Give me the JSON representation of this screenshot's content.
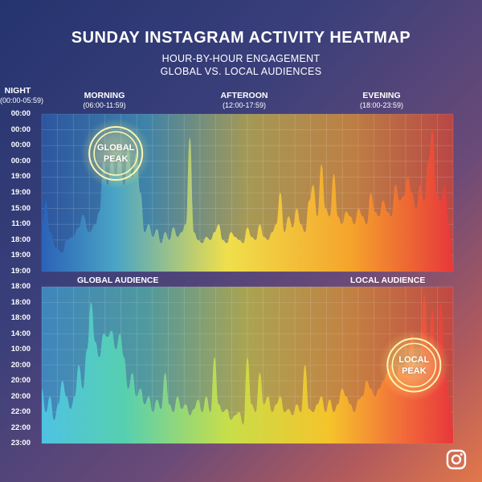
{
  "title": "SUNDAY INSTAGRAM ACTIVITY HEATMAP",
  "subtitle_line1": "HOUR-BY-HOUR ENGAGEMENT",
  "subtitle_line2": "GLOBAL VS. LOCAL AUDIENCES",
  "periods": [
    {
      "name": "NIGHT",
      "range": "(00:00-05:59)"
    },
    {
      "name": "MORNING",
      "range": "(06:00-11:59)"
    },
    {
      "name": "AFTEROON",
      "range": "(12:00-17:59)"
    },
    {
      "name": "EVENING",
      "range": "(18:00-23:59)"
    }
  ],
  "logo_icon": "instagram-icon",
  "chart_data": [
    {
      "type": "area",
      "panel": "top",
      "y_tick_labels": [
        "00:00",
        "00:00",
        "00:00",
        "00:00",
        "19:00",
        "19:00",
        "15:00",
        "11:00",
        "18:00",
        "19:00",
        "19:00"
      ],
      "grid": true,
      "gradient_colors": [
        "#2b62b8",
        "#4aa6c6",
        "#f2e24a",
        "#f7a52a",
        "#e8373b"
      ],
      "annotation": {
        "lines": [
          "GLOBAL",
          "PEAK"
        ],
        "x": 0.18,
        "y": 0.75
      },
      "x": [
        0,
        0.01,
        0.02,
        0.035,
        0.05,
        0.06,
        0.075,
        0.09,
        0.1,
        0.115,
        0.13,
        0.14,
        0.15,
        0.16,
        0.17,
        0.18,
        0.19,
        0.2,
        0.21,
        0.22,
        0.23,
        0.24,
        0.25,
        0.26,
        0.27,
        0.28,
        0.29,
        0.3,
        0.31,
        0.32,
        0.33,
        0.34,
        0.35,
        0.36,
        0.37,
        0.38,
        0.39,
        0.4,
        0.41,
        0.42,
        0.43,
        0.44,
        0.45,
        0.46,
        0.47,
        0.48,
        0.49,
        0.5,
        0.51,
        0.52,
        0.53,
        0.54,
        0.55,
        0.56,
        0.57,
        0.58,
        0.59,
        0.6,
        0.61,
        0.62,
        0.63,
        0.64,
        0.65,
        0.66,
        0.67,
        0.68,
        0.69,
        0.7,
        0.71,
        0.72,
        0.73,
        0.74,
        0.75,
        0.76,
        0.77,
        0.78,
        0.79,
        0.8,
        0.81,
        0.82,
        0.83,
        0.84,
        0.85,
        0.86,
        0.87,
        0.88,
        0.89,
        0.9,
        0.91,
        0.92,
        0.93,
        0.94,
        0.95,
        0.96,
        0.97,
        0.98,
        0.99,
        1
      ],
      "values": [
        0.3,
        0.45,
        0.25,
        0.15,
        0.12,
        0.2,
        0.22,
        0.28,
        0.36,
        0.25,
        0.3,
        0.38,
        0.7,
        0.55,
        0.72,
        0.62,
        0.75,
        0.55,
        0.8,
        0.6,
        0.75,
        0.5,
        0.25,
        0.3,
        0.22,
        0.27,
        0.18,
        0.25,
        0.2,
        0.28,
        0.22,
        0.25,
        0.3,
        0.85,
        0.25,
        0.2,
        0.18,
        0.22,
        0.2,
        0.25,
        0.3,
        0.2,
        0.18,
        0.25,
        0.22,
        0.2,
        0.18,
        0.28,
        0.22,
        0.2,
        0.3,
        0.22,
        0.2,
        0.25,
        0.3,
        0.5,
        0.25,
        0.35,
        0.28,
        0.4,
        0.3,
        0.25,
        0.45,
        0.55,
        0.35,
        0.68,
        0.4,
        0.35,
        0.62,
        0.35,
        0.3,
        0.38,
        0.35,
        0.3,
        0.4,
        0.35,
        0.3,
        0.5,
        0.38,
        0.35,
        0.45,
        0.38,
        0.35,
        0.55,
        0.45,
        0.48,
        0.6,
        0.5,
        0.4,
        0.55,
        0.45,
        0.7,
        0.9,
        0.5,
        0.45,
        0.55,
        0.3,
        0.05
      ]
    },
    {
      "type": "area",
      "panel": "bottom",
      "y_tick_labels": [
        "18:00",
        "18:00",
        "18:00",
        "14:00",
        "10:00",
        "20:00",
        "20:00",
        "20:00",
        "22:00",
        "22:00",
        "23:00"
      ],
      "grid": true,
      "gradient_colors": [
        "#4fc4e4",
        "#56d1b0",
        "#c8e04a",
        "#f7c52a",
        "#f36a3a",
        "#e8373b"
      ],
      "section_labels": {
        "left": "GLOBAL AUDIENCE",
        "right": "LOCAL AUDIENCE"
      },
      "annotation": {
        "lines": [
          "LOCAL",
          "PEAK"
        ],
        "x": 0.905,
        "y": 0.5
      },
      "x": [
        0,
        0.01,
        0.02,
        0.03,
        0.04,
        0.05,
        0.06,
        0.07,
        0.08,
        0.09,
        0.1,
        0.11,
        0.12,
        0.13,
        0.14,
        0.15,
        0.16,
        0.17,
        0.18,
        0.19,
        0.2,
        0.21,
        0.22,
        0.23,
        0.24,
        0.25,
        0.26,
        0.27,
        0.28,
        0.29,
        0.3,
        0.31,
        0.32,
        0.33,
        0.34,
        0.35,
        0.36,
        0.37,
        0.38,
        0.39,
        0.4,
        0.41,
        0.42,
        0.43,
        0.44,
        0.45,
        0.46,
        0.47,
        0.48,
        0.49,
        0.5,
        0.51,
        0.52,
        0.53,
        0.54,
        0.55,
        0.56,
        0.57,
        0.58,
        0.59,
        0.6,
        0.61,
        0.62,
        0.63,
        0.64,
        0.65,
        0.66,
        0.67,
        0.68,
        0.69,
        0.7,
        0.71,
        0.72,
        0.73,
        0.74,
        0.75,
        0.76,
        0.77,
        0.78,
        0.79,
        0.8,
        0.81,
        0.82,
        0.83,
        0.84,
        0.85,
        0.86,
        0.87,
        0.88,
        0.89,
        0.9,
        0.91,
        0.92,
        0.93,
        0.94,
        0.95,
        0.96,
        0.97,
        0.98,
        0.99,
        1
      ],
      "values": [
        0.35,
        0.2,
        0.3,
        0.15,
        0.25,
        0.4,
        0.3,
        0.22,
        0.3,
        0.5,
        0.35,
        0.6,
        0.9,
        0.65,
        0.55,
        0.7,
        0.68,
        0.72,
        0.6,
        0.7,
        0.55,
        0.35,
        0.45,
        0.3,
        0.35,
        0.25,
        0.3,
        0.2,
        0.28,
        0.22,
        0.45,
        0.25,
        0.2,
        0.3,
        0.22,
        0.25,
        0.18,
        0.22,
        0.28,
        0.2,
        0.3,
        0.2,
        0.55,
        0.25,
        0.2,
        0.22,
        0.15,
        0.18,
        0.2,
        0.12,
        0.55,
        0.25,
        0.2,
        0.45,
        0.25,
        0.3,
        0.2,
        0.25,
        0.3,
        0.2,
        0.22,
        0.18,
        0.25,
        0.2,
        0.5,
        0.22,
        0.2,
        0.25,
        0.3,
        0.2,
        0.28,
        0.2,
        0.25,
        0.35,
        0.3,
        0.25,
        0.2,
        0.28,
        0.3,
        0.4,
        0.35,
        0.3,
        0.35,
        0.4,
        0.45,
        0.5,
        0.4,
        0.5,
        0.45,
        0.55,
        0.7,
        0.45,
        0.55,
        0.95,
        0.6,
        0.85,
        0.5,
        0.9,
        0.45,
        0.3,
        0.1
      ]
    }
  ]
}
